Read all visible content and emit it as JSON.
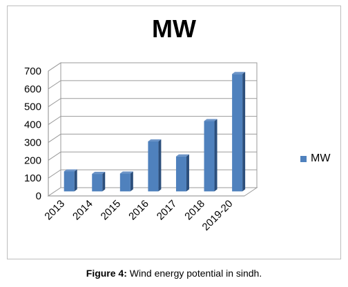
{
  "chart_data": {
    "type": "bar",
    "title": "MW",
    "categories": [
      "2013",
      "2014",
      "2015",
      "2016",
      "2017",
      "2018",
      "2019-20"
    ],
    "series": [
      {
        "name": "MW",
        "values": [
          112,
          98,
          100,
          280,
          196,
          394,
          658
        ]
      }
    ],
    "ylim": [
      0,
      700
    ],
    "yticks": [
      "0",
      "100",
      "200",
      "300",
      "400",
      "500",
      "600",
      "700"
    ],
    "grid": true,
    "legend_position": "right",
    "colors": {
      "bar": "#4f81bd",
      "bar_side": "#2c4f7c",
      "bar_top": "#6d95c8"
    }
  },
  "caption": {
    "label": "Figure 4:",
    "text": "Wind energy potential in sindh."
  }
}
